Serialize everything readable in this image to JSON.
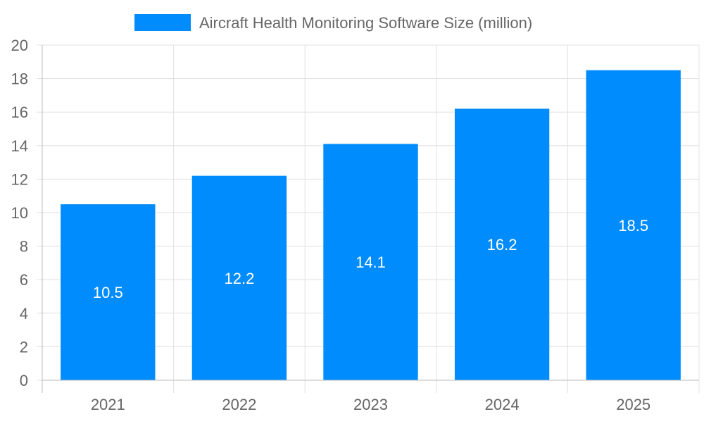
{
  "chart_data": {
    "type": "bar",
    "categories": [
      "2021",
      "2022",
      "2023",
      "2024",
      "2025"
    ],
    "series": [
      {
        "name": "Aircraft Health Monitoring Software Size (million)",
        "values": [
          10.5,
          12.2,
          14.1,
          16.2,
          18.5
        ],
        "color": "#008cfc"
      }
    ],
    "data_labels": [
      "10.5",
      "12.2",
      "14.1",
      "16.2",
      "18.5"
    ],
    "title": "",
    "xlabel": "",
    "ylabel": "",
    "ylim": [
      0,
      20
    ],
    "yticks": [
      0,
      2,
      4,
      6,
      8,
      10,
      12,
      14,
      16,
      18,
      20
    ],
    "grid": true,
    "legend": "top"
  }
}
